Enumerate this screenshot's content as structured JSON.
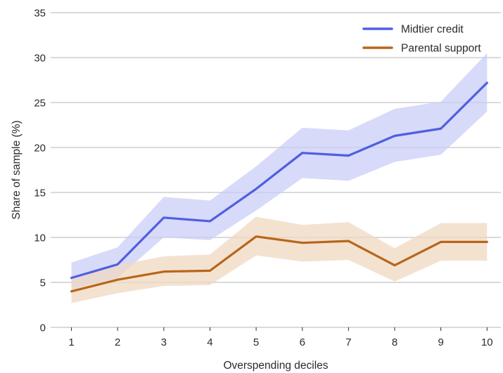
{
  "chart_data": {
    "type": "line",
    "xlabel": "Overspending deciles",
    "ylabel": "Share  of sample (%)",
    "x": [
      1,
      2,
      3,
      4,
      5,
      6,
      7,
      8,
      9,
      10
    ],
    "xlim": [
      0.55,
      10.3
    ],
    "ylim": [
      0,
      35
    ],
    "yticks": [
      0,
      5,
      10,
      15,
      20,
      25,
      30,
      35
    ],
    "grid": "horizontal",
    "legend": "top-right",
    "series": [
      {
        "name": "Midtier credit",
        "color": "#4f5fe0",
        "band_color": "#c9cdf7",
        "values": [
          5.5,
          7.0,
          12.2,
          11.8,
          15.4,
          19.4,
          19.1,
          21.3,
          22.1,
          27.2
        ],
        "lower": [
          4.2,
          5.5,
          10.0,
          9.7,
          13.0,
          16.6,
          16.3,
          18.4,
          19.2,
          24.0
        ],
        "upper": [
          7.2,
          8.9,
          14.5,
          14.1,
          17.9,
          22.2,
          21.9,
          24.3,
          25.1,
          30.5
        ]
      },
      {
        "name": "Parental support",
        "color": "#b8661a",
        "band_color": "#f0d8c1",
        "values": [
          4.0,
          5.3,
          6.2,
          6.3,
          10.1,
          9.4,
          9.6,
          6.9,
          9.5,
          9.5
        ],
        "lower": [
          2.7,
          3.8,
          4.6,
          4.7,
          8.0,
          7.3,
          7.5,
          5.1,
          7.4,
          7.4
        ],
        "upper": [
          5.5,
          6.9,
          7.9,
          8.1,
          12.3,
          11.4,
          11.7,
          8.8,
          11.6,
          11.6
        ]
      }
    ]
  }
}
